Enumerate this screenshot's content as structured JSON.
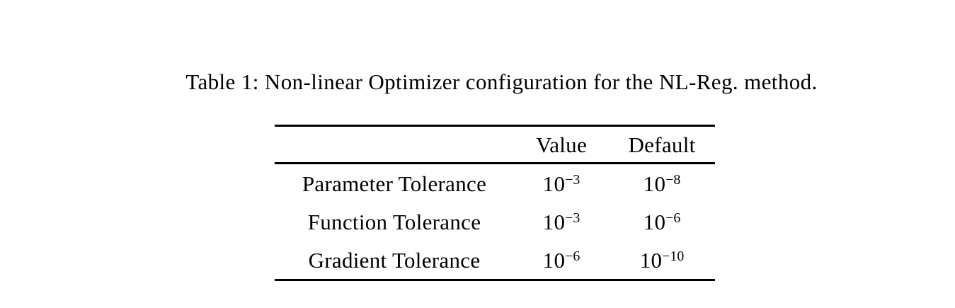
{
  "page": {
    "background_color": "#ffffff",
    "text_color": "#000000"
  },
  "caption": "Table 1: Non-linear Optimizer configuration for the NL-Reg. method.",
  "table": {
    "headers": {
      "label_col": "",
      "value_col": "Value",
      "default_col": "Default"
    },
    "rows": [
      {
        "label": "Parameter Tolerance",
        "value": {
          "base": "10",
          "exp": "−3"
        },
        "default": {
          "base": "10",
          "exp": "−8"
        }
      },
      {
        "label": "Function Tolerance",
        "value": {
          "base": "10",
          "exp": "−3"
        },
        "default": {
          "base": "10",
          "exp": "−6"
        }
      },
      {
        "label": "Gradient Tolerance",
        "value": {
          "base": "10",
          "exp": "−6"
        },
        "default": {
          "base": "10",
          "exp": "−10"
        }
      }
    ]
  }
}
